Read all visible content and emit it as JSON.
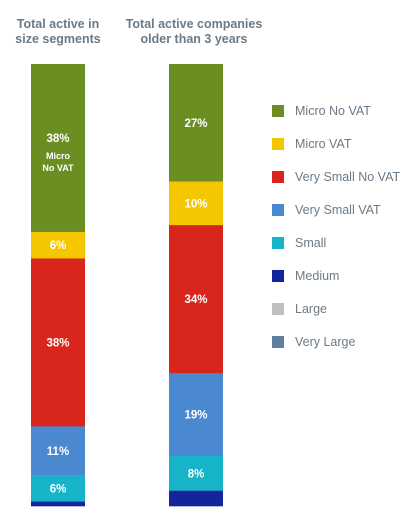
{
  "chart_data": {
    "type": "bar",
    "stacked": true,
    "columns": [
      {
        "title": "Total active in size segments",
        "segments": [
          {
            "series": "Micro No VAT",
            "value": 38,
            "label": "38%",
            "sublabel": "Micro No VAT"
          },
          {
            "series": "Micro VAT",
            "value": 6,
            "label": "6%"
          },
          {
            "series": "Very Small No VAT",
            "value": 38,
            "label": "38%"
          },
          {
            "series": "Very Small VAT",
            "value": 11,
            "label": "11%"
          },
          {
            "series": "Small",
            "value": 6,
            "label": "6%"
          },
          {
            "series": "Medium",
            "value": 1,
            "label": ""
          }
        ]
      },
      {
        "title": "Total active companies older than 3 years",
        "segments": [
          {
            "series": "Micro No VAT",
            "value": 27,
            "label": "27%"
          },
          {
            "series": "Micro VAT",
            "value": 10,
            "label": "10%"
          },
          {
            "series": "Very Small No VAT",
            "value": 34,
            "label": "34%"
          },
          {
            "series": "Very Small VAT",
            "value": 19,
            "label": "19%"
          },
          {
            "series": "Small",
            "value": 8,
            "label": "8%"
          },
          {
            "series": "Medium",
            "value": 3.5,
            "label": ""
          }
        ]
      }
    ],
    "legend": {
      "placement": "right",
      "entries": [
        {
          "name": "Micro No VAT",
          "color": "#6b8e23"
        },
        {
          "name": "Micro VAT",
          "color": "#f5c700"
        },
        {
          "name": "Very Small No VAT",
          "color": "#d9261c"
        },
        {
          "name": "Very Small VAT",
          "color": "#4a89d0"
        },
        {
          "name": "Small",
          "color": "#17b3c9"
        },
        {
          "name": "Medium",
          "color": "#14249a"
        },
        {
          "name": "Large",
          "color": "#c0c0c0"
        },
        {
          "name": "Very Large",
          "color": "#5f7f9f"
        }
      ]
    }
  }
}
